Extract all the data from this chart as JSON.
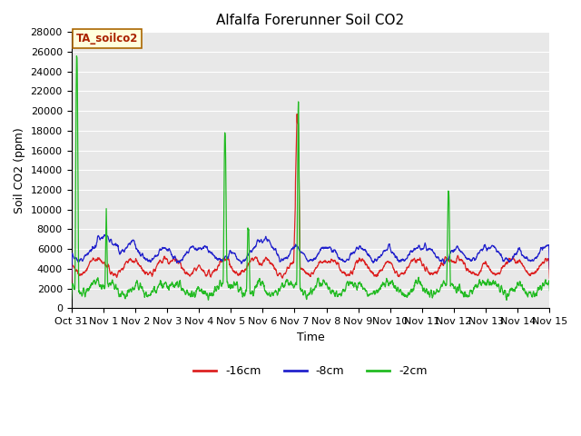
{
  "title": "Alfalfa Forerunner Soil CO2",
  "ylabel": "Soil CO2 (ppm)",
  "xlabel": "Time",
  "annotation": "TA_soilco2",
  "ylim": [
    0,
    28000
  ],
  "yticks": [
    0,
    2000,
    4000,
    6000,
    8000,
    10000,
    12000,
    14000,
    16000,
    18000,
    20000,
    22000,
    24000,
    26000,
    28000
  ],
  "xtick_labels": [
    "Oct 31",
    "Nov 1",
    "Nov 2",
    "Nov 3",
    "Nov 4",
    "Nov 5",
    "Nov 6",
    "Nov 7",
    "Nov 8",
    "Nov 9",
    "Nov 10",
    "Nov 11",
    "Nov 12",
    "Nov 13",
    "Nov 14",
    "Nov 15"
  ],
  "color_16cm": "#dd2222",
  "color_8cm": "#2222cc",
  "color_2cm": "#22bb22",
  "legend_labels": [
    "-16cm",
    "-8cm",
    "-2cm"
  ],
  "background_color": "#e8e8e8",
  "annotation_bg": "#ffffdd",
  "annotation_border": "#aa6600",
  "annotation_color": "#aa2200",
  "title_fontsize": 11,
  "axis_label_fontsize": 9,
  "tick_fontsize": 8,
  "legend_fontsize": 9,
  "num_points": 2160,
  "seed": 12345
}
